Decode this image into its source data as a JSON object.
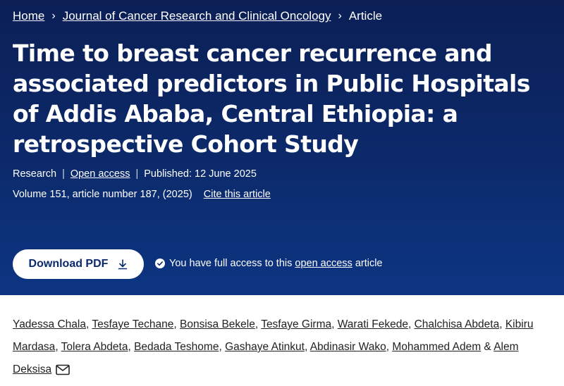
{
  "breadcrumb": {
    "home": "Home",
    "journal": "Journal of Cancer Research and Clinical Oncology",
    "current": "Article",
    "separator": "›"
  },
  "article": {
    "title": "Time to breast cancer recurrence and associated predictors in Public Hospitals of Addis Ababa, Central Ethiopia: a retrospective Cohort Study",
    "type": "Research",
    "access": "Open access",
    "published": "Published: 12 June 2025",
    "volume_info": "Volume 151, article number 187, (2025)",
    "cite_label": "Cite this article",
    "divider": "|"
  },
  "actions": {
    "download_label": "Download PDF",
    "access_prefix": "You have full access to this",
    "access_link": "open access",
    "access_suffix": "article"
  },
  "authors": {
    "names": [
      "Yadessa Chala",
      "Tesfaye Techane",
      "Bonsisa Bekele",
      "Tesfaye Girma",
      "Warati Fekede",
      "Chalchisa Abdeta",
      "Kibiru Mardasa",
      "Tolera Abdeta",
      "Bedada Teshome",
      "Gashaye Atinkut",
      "Abdinasir Wako",
      "Mohammed Adem",
      "Alem Deksisa"
    ],
    "separator": ", ",
    "last_separator": " & "
  },
  "colors": {
    "hero_top": "#0b1f55",
    "hero_bottom": "#0d3583",
    "button_text": "#0c2a6b"
  },
  "icons": [
    "chevron-right-icon",
    "download-icon",
    "check-circle-icon",
    "mail-icon"
  ]
}
